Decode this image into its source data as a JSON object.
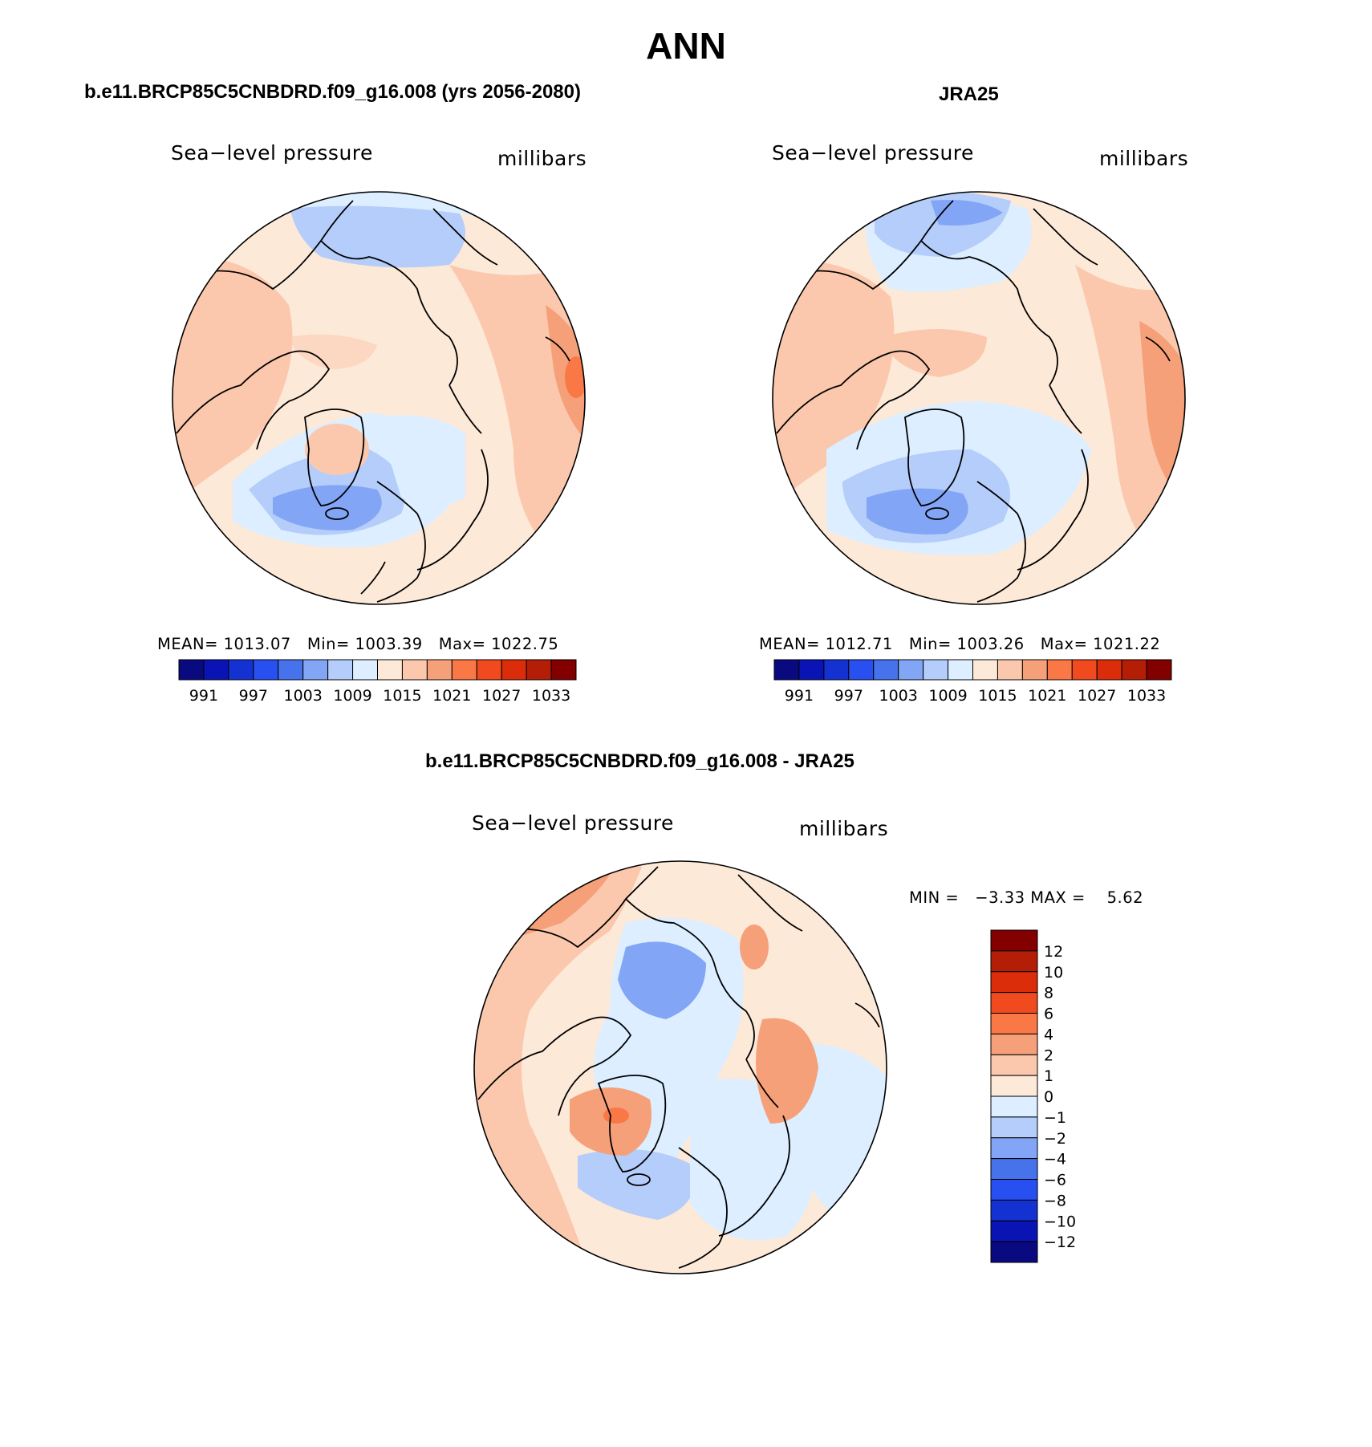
{
  "page": {
    "title": "ANN"
  },
  "panels": [
    {
      "id": "model",
      "title": "b.e11.BRCP85C5CNBDRD.f09_g16.008 (yrs 2056-2080)",
      "left_label": "Sea−level pressure",
      "right_label": "millibars",
      "stats": {
        "mean_label": "MEAN=",
        "mean": "1013.07",
        "min_label": "Min=",
        "min": "1003.39",
        "max_label": "Max=",
        "max": "1022.75"
      }
    },
    {
      "id": "obs",
      "title": "JRA25",
      "left_label": "Sea−level pressure",
      "right_label": "millibars",
      "stats": {
        "mean_label": "MEAN=",
        "mean": "1012.71",
        "min_label": "Min=",
        "min": "1003.26",
        "max_label": "Max=",
        "max": "1021.22"
      }
    },
    {
      "id": "diff",
      "title": "b.e11.BRCP85C5CNBDRD.f09_g16.008 - JRA25",
      "left_label": "Sea−level pressure",
      "right_label": "millibars",
      "stats_text": "MIN =   −3.33 MAX =    5.62"
    }
  ],
  "colorbar_abs": {
    "colors": [
      "#0a0a80",
      "#0a14b4",
      "#1432d2",
      "#2850f0",
      "#4673ec",
      "#82a5f5",
      "#b4cdfa",
      "#dceeff",
      "#fde9d8",
      "#fbc8ad",
      "#f5a078",
      "#fa7846",
      "#f04a1e",
      "#dc2d0a",
      "#b41e06",
      "#820000"
    ],
    "labels": [
      "991",
      "997",
      "1003",
      "1009",
      "1015",
      "1021",
      "1027",
      "1033"
    ]
  },
  "colorbar_diff": {
    "colors": [
      "#0a0a80",
      "#0a14b4",
      "#1432d2",
      "#2850f0",
      "#4673ec",
      "#82a5f5",
      "#b4cdfa",
      "#dceeff",
      "#fde9d8",
      "#fbc8ad",
      "#f5a078",
      "#fa7846",
      "#f04a1e",
      "#dc2d0a",
      "#b41e06",
      "#820000"
    ],
    "labels": [
      "12",
      "10",
      "8",
      "6",
      "4",
      "2",
      "1",
      "0",
      "−1",
      "−2",
      "−4",
      "−6",
      "−8",
      "−10",
      "−12"
    ]
  }
}
